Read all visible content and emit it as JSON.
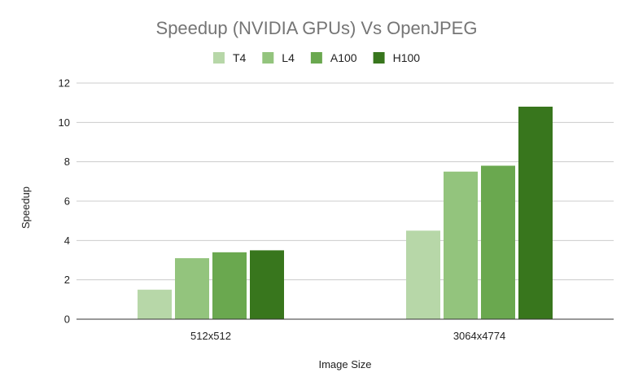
{
  "chart_data": {
    "type": "bar",
    "title": "Speedup (NVIDIA GPUs) Vs OpenJPEG",
    "xlabel": "Image Size",
    "ylabel": "Speedup",
    "categories": [
      "512x512",
      "3064x4774"
    ],
    "series": [
      {
        "name": "T4",
        "color": "#b7d7a8",
        "values": [
          1.5,
          4.5
        ]
      },
      {
        "name": "L4",
        "color": "#93c47d",
        "values": [
          3.1,
          7.5
        ]
      },
      {
        "name": "A100",
        "color": "#6aa84f",
        "values": [
          3.4,
          7.8
        ]
      },
      {
        "name": "H100",
        "color": "#38761d",
        "values": [
          3.5,
          10.8
        ]
      }
    ],
    "ylim": [
      0,
      12
    ],
    "yticks": [
      0,
      2,
      4,
      6,
      8,
      10,
      12
    ],
    "grid": true,
    "legend_position": "top"
  }
}
